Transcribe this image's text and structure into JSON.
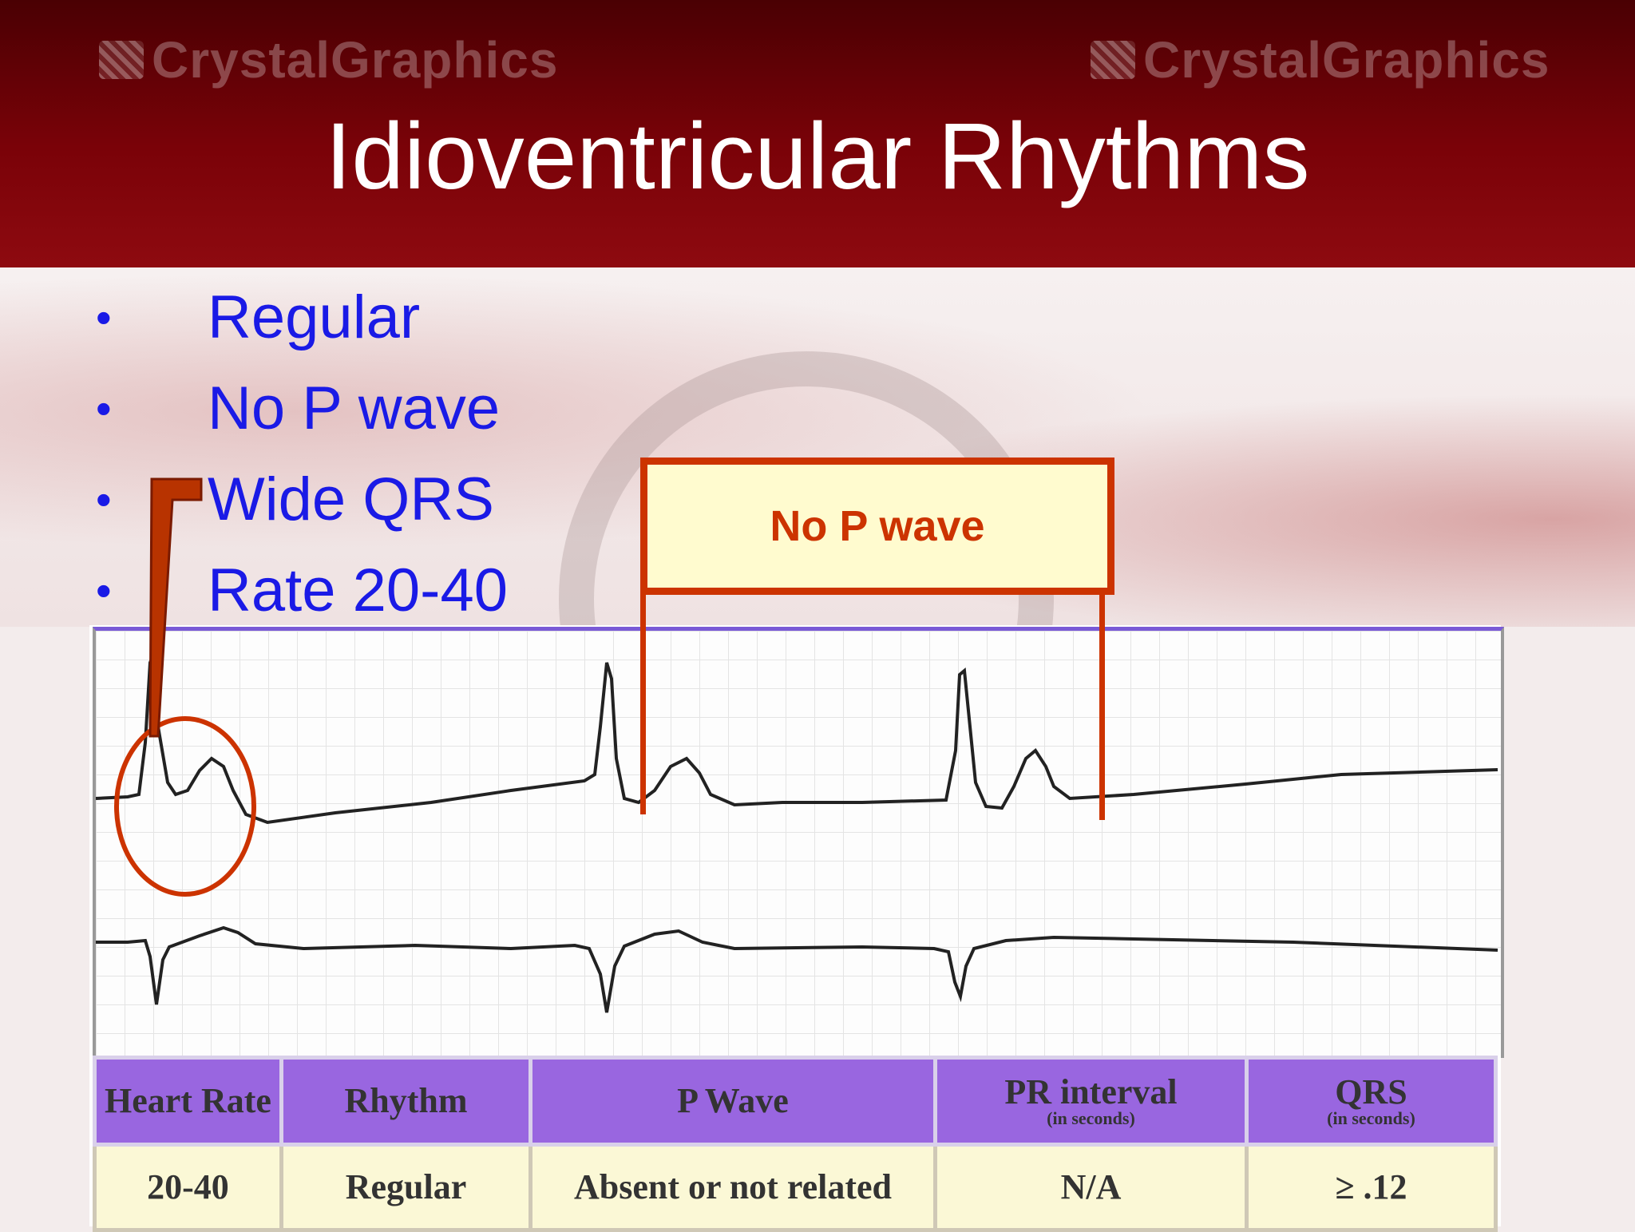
{
  "watermark": {
    "left": "CrystalGraphics",
    "right": "CrystalGraphics"
  },
  "slide_title": "Idioventricular Rhythms",
  "bullets": [
    "Regular",
    "No P wave",
    "Wide QRS",
    "Rate 20-40"
  ],
  "bullet_glyph": "•",
  "callout": "No P wave",
  "table": {
    "headers": [
      {
        "label": "Heart Rate",
        "sub": ""
      },
      {
        "label": "Rhythm",
        "sub": ""
      },
      {
        "label": "P Wave",
        "sub": ""
      },
      {
        "label": "PR interval",
        "sub": "(in seconds)"
      },
      {
        "label": "QRS",
        "sub": "(in seconds)"
      }
    ],
    "values": [
      "20-40",
      "Regular",
      "Absent or not related",
      "N/A",
      "≥ .12"
    ]
  },
  "colors": {
    "header": "#7a0208",
    "bullet": "#1a1ae6",
    "annotation": "#cc3300",
    "table_header": "#9966e0",
    "table_cell": "#fbf8d6"
  }
}
